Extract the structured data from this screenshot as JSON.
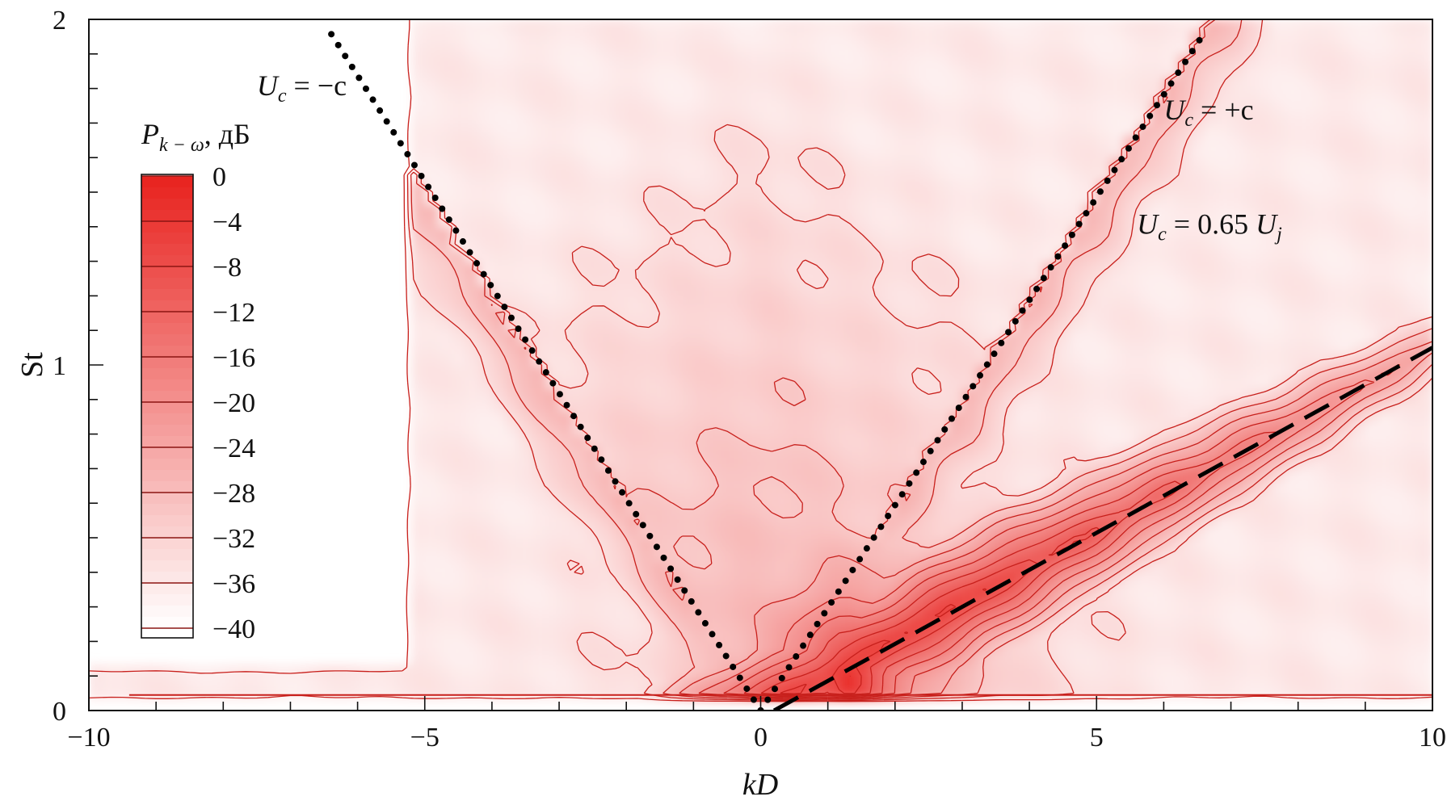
{
  "chart_data": {
    "type": "heatmap",
    "title": "",
    "xlabel": "kD",
    "ylabel": "St",
    "xlim": [
      -10,
      10
    ],
    "ylim": [
      0,
      2
    ],
    "x_ticks": [
      -10,
      -5,
      0,
      5,
      10
    ],
    "x_tick_labels": [
      "−10",
      "−5",
      "0",
      "5",
      "10"
    ],
    "y_ticks": [
      0,
      1,
      2
    ],
    "y_tick_labels": [
      "0",
      "1",
      "2"
    ],
    "grid": false,
    "colormap": [
      "#ffffff",
      "#e8221e"
    ],
    "colorbar": {
      "title_main": "P",
      "title_sub": "k − ω",
      "title_unit": ", дБ",
      "levels": [
        0,
        -4,
        -8,
        -12,
        -16,
        -20,
        -24,
        -28,
        -32,
        -36,
        -40
      ],
      "labels": [
        "0",
        "−4",
        "−8",
        "−12",
        "−16",
        "−20",
        "−24",
        "−28",
        "−32",
        "−36",
        "−40"
      ],
      "range": [
        -40,
        0
      ],
      "placement": "left"
    },
    "peak": {
      "kD": 1.3,
      "St": 0.09,
      "value_dB": 0
    },
    "lines": [
      {
        "name": "Uc = -c",
        "style": "dotted",
        "x": [
          0,
          -6.4
        ],
        "y": [
          0,
          1.96
        ]
      },
      {
        "name": "Uc = +c",
        "style": "dotted",
        "x": [
          0,
          6.6
        ],
        "y": [
          0,
          1.96
        ]
      },
      {
        "name": "Uc = 0.65 Uj",
        "style": "dashed",
        "x": [
          0.2,
          10
        ],
        "y": [
          0,
          1.05
        ]
      }
    ],
    "annotations": [
      {
        "sym": "U",
        "sub": "c",
        "rest": " = −c",
        "x": -7.5,
        "y": 1.78
      },
      {
        "sym": "U",
        "sub": "c",
        "rest": " = +c",
        "x": 6.0,
        "y": 1.71
      },
      {
        "sym": "U",
        "sub": "c",
        "rest": " = 0.65",
        "sym2": "U",
        "sub2": "j",
        "x": 5.6,
        "y": 1.38
      }
    ]
  }
}
